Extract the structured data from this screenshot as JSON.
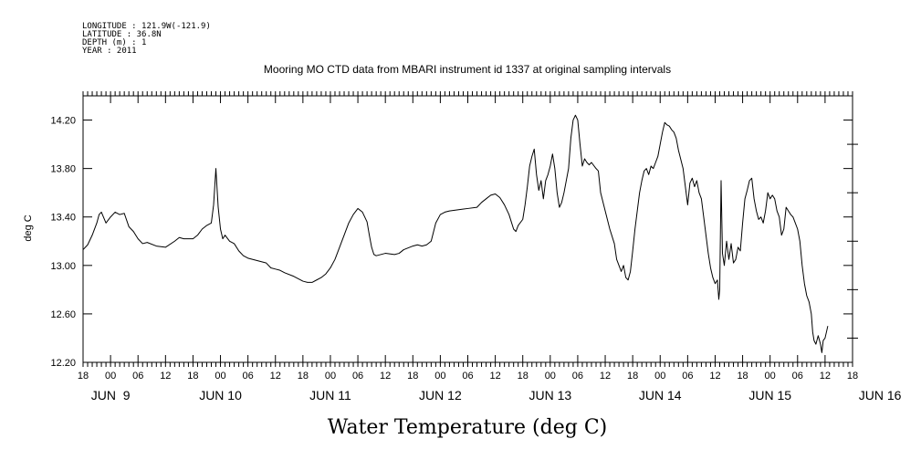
{
  "header": {
    "longitude": "LONGITUDE : 121.9W(-121.9)",
    "latitude": "LATITUDE : 36.8N",
    "depth": "DEPTH (m) : 1",
    "year": "YEAR : 2011"
  },
  "chart_data": {
    "type": "line",
    "title": "Mooring MO CTD data from MBARI instrument id 1337 at original sampling intervals",
    "xlabel": "Water Temperature (deg C)",
    "ylabel": "deg C",
    "x_unit": "hours since 2011-06-08 18:00",
    "xlim": [
      0,
      168
    ],
    "ylim": [
      12.2,
      14.4
    ],
    "y_ticks": [
      "12.20",
      "12.60",
      "13.00",
      "13.40",
      "13.80",
      "14.20"
    ],
    "x_hour_ticks": [
      "18",
      "00",
      "06",
      "12",
      "18",
      "00",
      "06",
      "12",
      "18",
      "00",
      "06",
      "12",
      "18",
      "00",
      "06",
      "12",
      "18",
      "00",
      "06",
      "12",
      "18",
      "00",
      "06",
      "12",
      "18",
      "00",
      "06",
      "12",
      "18"
    ],
    "day_labels": [
      "JUN  9",
      "JUN 10",
      "JUN 11",
      "JUN 12",
      "JUN 13",
      "JUN 14",
      "JUN 15",
      "JUN 16"
    ],
    "series": [
      {
        "points": [
          [
            0,
            13.13
          ],
          [
            1,
            13.17
          ],
          [
            2,
            13.25
          ],
          [
            3,
            13.35
          ],
          [
            3.5,
            13.42
          ],
          [
            4,
            13.44
          ],
          [
            5,
            13.35
          ],
          [
            6,
            13.4
          ],
          [
            7,
            13.44
          ],
          [
            8,
            13.42
          ],
          [
            9,
            13.43
          ],
          [
            10,
            13.32
          ],
          [
            11,
            13.28
          ],
          [
            12,
            13.22
          ],
          [
            13,
            13.18
          ],
          [
            14,
            13.19
          ],
          [
            16,
            13.16
          ],
          [
            18,
            13.15
          ],
          [
            20,
            13.2
          ],
          [
            21,
            13.23
          ],
          [
            22,
            13.22
          ],
          [
            24,
            13.22
          ],
          [
            25,
            13.25
          ],
          [
            26,
            13.3
          ],
          [
            27,
            13.33
          ],
          [
            28,
            13.35
          ],
          [
            28.5,
            13.5
          ],
          [
            29,
            13.8
          ],
          [
            29.5,
            13.48
          ],
          [
            30,
            13.3
          ],
          [
            30.5,
            13.22
          ],
          [
            31,
            13.25
          ],
          [
            32,
            13.2
          ],
          [
            33,
            13.18
          ],
          [
            34,
            13.12
          ],
          [
            35,
            13.08
          ],
          [
            36,
            13.06
          ],
          [
            38,
            13.04
          ],
          [
            40,
            13.02
          ],
          [
            41,
            12.98
          ],
          [
            42,
            12.97
          ],
          [
            43,
            12.96
          ],
          [
            44,
            12.94
          ],
          [
            46,
            12.91
          ],
          [
            48,
            12.87
          ],
          [
            49,
            12.86
          ],
          [
            50,
            12.86
          ],
          [
            51,
            12.88
          ],
          [
            52,
            12.9
          ],
          [
            53,
            12.93
          ],
          [
            54,
            12.98
          ],
          [
            55,
            13.05
          ],
          [
            56,
            13.15
          ],
          [
            57,
            13.25
          ],
          [
            58,
            13.35
          ],
          [
            59,
            13.42
          ],
          [
            60,
            13.47
          ],
          [
            61,
            13.44
          ],
          [
            62,
            13.36
          ],
          [
            62.5,
            13.25
          ],
          [
            63,
            13.15
          ],
          [
            63.5,
            13.09
          ],
          [
            64,
            13.08
          ],
          [
            66,
            13.1
          ],
          [
            68,
            13.09
          ],
          [
            69,
            13.1
          ],
          [
            70,
            13.13
          ],
          [
            72,
            13.16
          ],
          [
            73,
            13.17
          ],
          [
            74,
            13.16
          ],
          [
            75,
            13.17
          ],
          [
            76,
            13.2
          ],
          [
            77,
            13.35
          ],
          [
            78,
            13.42
          ],
          [
            79,
            13.44
          ],
          [
            80,
            13.45
          ],
          [
            82,
            13.46
          ],
          [
            84,
            13.47
          ],
          [
            86,
            13.48
          ],
          [
            87,
            13.52
          ],
          [
            88,
            13.55
          ],
          [
            89,
            13.58
          ],
          [
            90,
            13.59
          ],
          [
            91,
            13.56
          ],
          [
            92,
            13.5
          ],
          [
            93,
            13.42
          ],
          [
            93.5,
            13.36
          ],
          [
            94,
            13.3
          ],
          [
            94.5,
            13.28
          ],
          [
            95,
            13.33
          ],
          [
            96,
            13.38
          ],
          [
            96.5,
            13.5
          ],
          [
            97,
            13.65
          ],
          [
            97.5,
            13.82
          ],
          [
            98,
            13.9
          ],
          [
            98.5,
            13.96
          ],
          [
            99,
            13.75
          ],
          [
            99.5,
            13.62
          ],
          [
            100,
            13.7
          ],
          [
            100.5,
            13.55
          ],
          [
            101,
            13.7
          ],
          [
            101.5,
            13.75
          ],
          [
            102,
            13.82
          ],
          [
            102.5,
            13.92
          ],
          [
            103,
            13.8
          ],
          [
            103.5,
            13.6
          ],
          [
            104,
            13.48
          ],
          [
            104.5,
            13.52
          ],
          [
            105,
            13.6
          ],
          [
            105.5,
            13.7
          ],
          [
            106,
            13.8
          ],
          [
            106.5,
            14.05
          ],
          [
            107,
            14.2
          ],
          [
            107.5,
            14.24
          ],
          [
            108,
            14.2
          ],
          [
            108.5,
            14.0
          ],
          [
            109,
            13.82
          ],
          [
            109.5,
            13.88
          ],
          [
            110,
            13.85
          ],
          [
            110.5,
            13.83
          ],
          [
            111,
            13.85
          ],
          [
            112,
            13.8
          ],
          [
            112.5,
            13.78
          ],
          [
            113,
            13.6
          ],
          [
            114,
            13.45
          ],
          [
            115,
            13.3
          ],
          [
            116,
            13.18
          ],
          [
            116.5,
            13.05
          ],
          [
            117,
            13.0
          ],
          [
            117.5,
            12.95
          ],
          [
            118,
            13.0
          ],
          [
            118.5,
            12.9
          ],
          [
            119,
            12.88
          ],
          [
            119.5,
            12.95
          ],
          [
            120,
            13.12
          ],
          [
            120.5,
            13.3
          ],
          [
            121,
            13.45
          ],
          [
            121.5,
            13.6
          ],
          [
            122,
            13.7
          ],
          [
            122.5,
            13.78
          ],
          [
            123,
            13.8
          ],
          [
            123.5,
            13.75
          ],
          [
            124,
            13.82
          ],
          [
            124.5,
            13.8
          ],
          [
            125,
            13.85
          ],
          [
            125.5,
            13.9
          ],
          [
            126,
            14.0
          ],
          [
            126.5,
            14.1
          ],
          [
            127,
            14.18
          ],
          [
            127.5,
            14.16
          ],
          [
            128,
            14.15
          ],
          [
            128.5,
            14.12
          ],
          [
            129,
            14.1
          ],
          [
            129.5,
            14.05
          ],
          [
            130,
            13.95
          ],
          [
            131,
            13.8
          ],
          [
            131.5,
            13.65
          ],
          [
            132,
            13.5
          ],
          [
            132.5,
            13.68
          ],
          [
            133,
            13.72
          ],
          [
            133.5,
            13.65
          ],
          [
            134,
            13.7
          ],
          [
            134.5,
            13.6
          ],
          [
            135,
            13.55
          ],
          [
            135.5,
            13.4
          ],
          [
            136,
            13.25
          ],
          [
            136.5,
            13.1
          ],
          [
            137,
            12.98
          ],
          [
            137.5,
            12.9
          ],
          [
            138,
            12.85
          ],
          [
            138.5,
            12.88
          ],
          [
            138.8,
            12.72
          ],
          [
            139,
            12.8
          ],
          [
            139.3,
            13.7
          ],
          [
            139.6,
            13.1
          ],
          [
            140,
            13.0
          ],
          [
            140.5,
            13.2
          ],
          [
            141,
            13.05
          ],
          [
            141.5,
            13.18
          ],
          [
            142,
            13.02
          ],
          [
            142.5,
            13.05
          ],
          [
            143,
            13.15
          ],
          [
            143.5,
            13.12
          ],
          [
            144,
            13.35
          ],
          [
            144.5,
            13.55
          ],
          [
            145,
            13.62
          ],
          [
            145.5,
            13.7
          ],
          [
            146,
            13.72
          ],
          [
            146.5,
            13.55
          ],
          [
            147,
            13.45
          ],
          [
            147.5,
            13.38
          ],
          [
            148,
            13.4
          ],
          [
            148.5,
            13.35
          ],
          [
            149,
            13.45
          ],
          [
            149.5,
            13.6
          ],
          [
            150,
            13.55
          ],
          [
            150.5,
            13.58
          ],
          [
            151,
            13.55
          ],
          [
            151.5,
            13.45
          ],
          [
            152,
            13.4
          ],
          [
            152.5,
            13.25
          ],
          [
            153,
            13.3
          ],
          [
            153.5,
            13.48
          ],
          [
            154,
            13.45
          ],
          [
            154.5,
            13.42
          ],
          [
            155,
            13.4
          ],
          [
            155.5,
            13.35
          ],
          [
            156,
            13.3
          ],
          [
            156.5,
            13.2
          ],
          [
            157,
            13.0
          ],
          [
            157.5,
            12.85
          ],
          [
            158,
            12.75
          ],
          [
            158.5,
            12.7
          ],
          [
            159,
            12.6
          ],
          [
            159.3,
            12.45
          ],
          [
            159.6,
            12.38
          ],
          [
            160,
            12.35
          ],
          [
            160.5,
            12.42
          ],
          [
            161,
            12.35
          ],
          [
            161.3,
            12.28
          ],
          [
            161.6,
            12.38
          ],
          [
            162,
            12.4
          ],
          [
            162.3,
            12.45
          ],
          [
            162.6,
            12.5
          ]
        ]
      }
    ]
  }
}
